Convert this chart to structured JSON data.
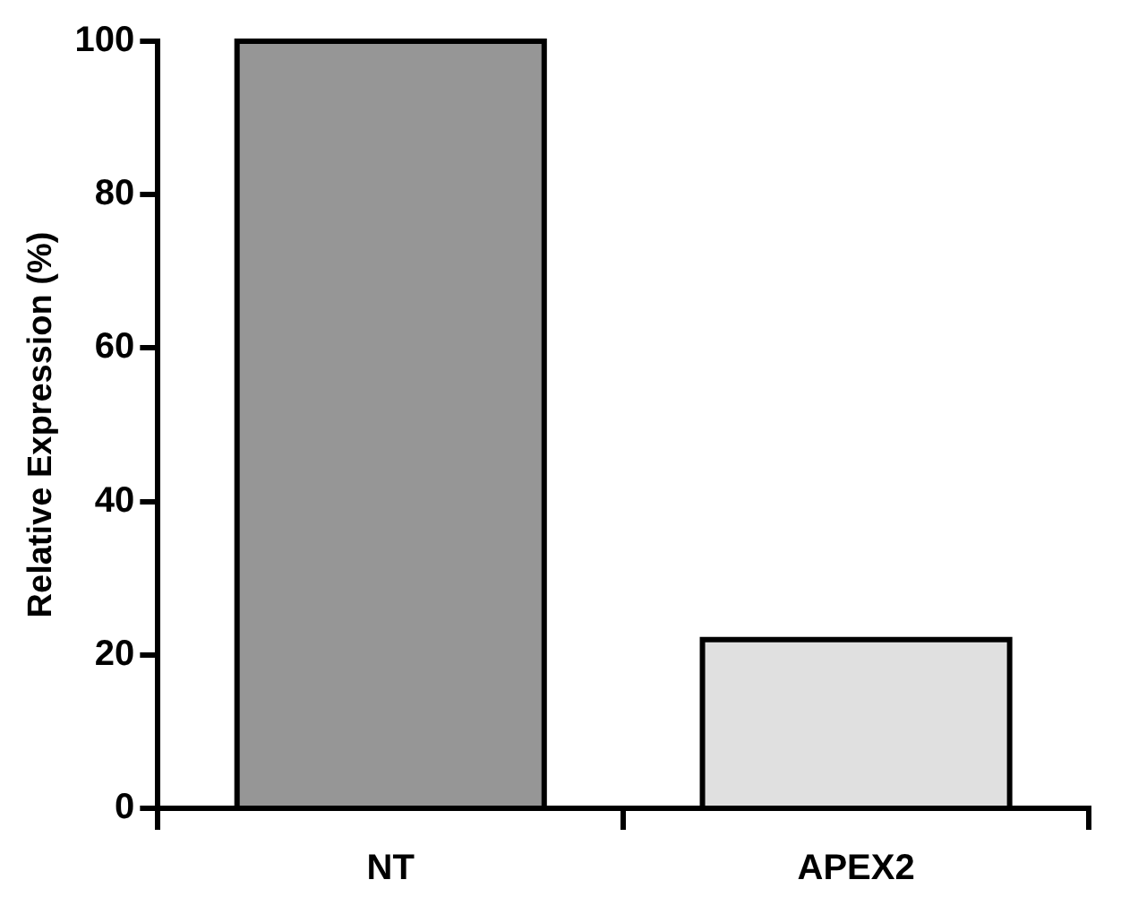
{
  "chart_data": {
    "type": "bar",
    "ylabel": "Relative Expression (%)",
    "categories": [
      "NT",
      "APEX2"
    ],
    "values": [
      100,
      22
    ],
    "colors": [
      "#969696",
      "#e0e0e0"
    ],
    "ylim": [
      0,
      100
    ],
    "yticks": [
      0,
      20,
      40,
      60,
      80,
      100
    ],
    "grid": false,
    "legend": false
  }
}
